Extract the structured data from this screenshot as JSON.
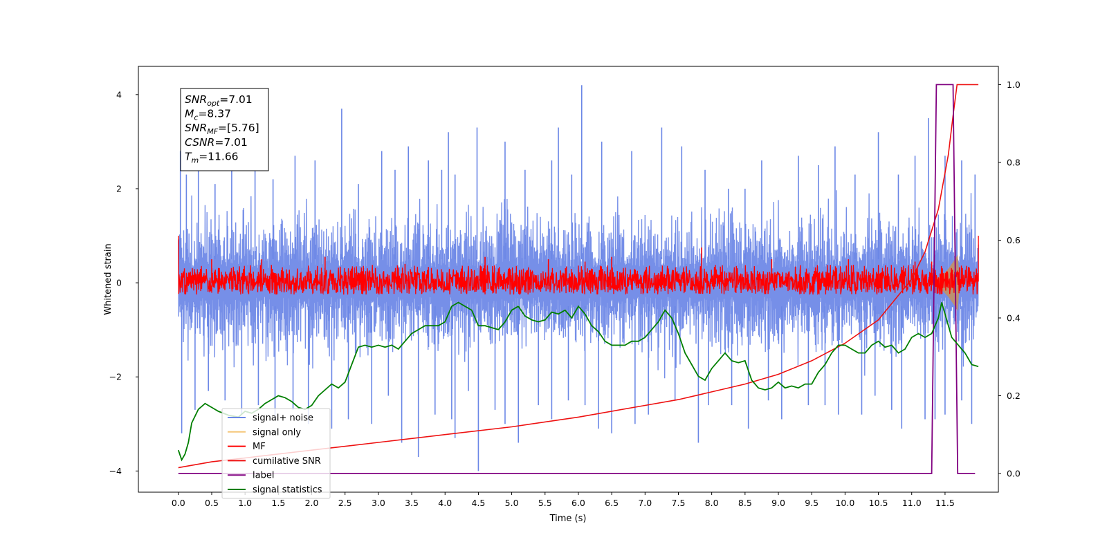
{
  "chart_data": {
    "type": "line",
    "xlabel": "Time (s)",
    "ylabel_left": "Whitened strain",
    "ylabel_right": "",
    "xlim": [
      -0.6,
      12.3
    ],
    "ylim_left": [
      -4.45,
      4.6
    ],
    "ylim_right": [
      -0.048,
      1.047
    ],
    "x_ticks": [
      "0.0",
      "0.5",
      "1.0",
      "1.5",
      "2.0",
      "2.5",
      "3.0",
      "3.5",
      "4.0",
      "4.5",
      "5.0",
      "5.5",
      "6.0",
      "6.5",
      "7.0",
      "7.5",
      "8.0",
      "8.5",
      "9.0",
      "9.5",
      "10.0",
      "10.5",
      "11.0",
      "11.5"
    ],
    "y_ticks_left": [
      "−4",
      "−2",
      "0",
      "2",
      "4"
    ],
    "y_ticks_right": [
      "0.0",
      "0.2",
      "0.4",
      "0.6",
      "0.8",
      "1.0"
    ],
    "grid": false,
    "legend_position": "lower-left",
    "colors": {
      "signal_noise": "#6a86e6",
      "signal_only": "#f5c77a",
      "mf": "#ff0000",
      "cumulative_snr": "#ee1111",
      "label": "#800080",
      "signal_statistics": "#007f00",
      "chirp_envelope": "#c9915a"
    },
    "series": [
      {
        "name": "signal+ noise",
        "axis": "left",
        "duration_s": 12.0,
        "band": [
          -1.5,
          1.5
        ],
        "extreme_peaks": [
          [
            0.03,
            2.8
          ],
          [
            0.12,
            2.3
          ],
          [
            0.3,
            2.5
          ],
          [
            0.55,
            2.1
          ],
          [
            0.8,
            2.4
          ],
          [
            1.15,
            2.6
          ],
          [
            1.42,
            2.2
          ],
          [
            1.75,
            2.7
          ],
          [
            2.05,
            2.6
          ],
          [
            2.45,
            3.7
          ],
          [
            2.7,
            2.1
          ],
          [
            3.05,
            2.8
          ],
          [
            3.25,
            2.4
          ],
          [
            3.45,
            2.9
          ],
          [
            3.75,
            2.6
          ],
          [
            3.95,
            2.4
          ],
          [
            4.05,
            3.2
          ],
          [
            4.15,
            2.3
          ],
          [
            4.48,
            3.3
          ],
          [
            4.9,
            3.0
          ],
          [
            5.2,
            2.4
          ],
          [
            5.6,
            2.6
          ],
          [
            5.7,
            3.3
          ],
          [
            5.9,
            2.3
          ],
          [
            6.05,
            4.2
          ],
          [
            6.35,
            3.0
          ],
          [
            6.8,
            2.8
          ],
          [
            7.25,
            3.3
          ],
          [
            7.55,
            2.9
          ],
          [
            7.9,
            2.4
          ],
          [
            8.25,
            2.0
          ],
          [
            8.5,
            2.0
          ],
          [
            8.75,
            2.6
          ],
          [
            9.3,
            2.7
          ],
          [
            9.6,
            2.5
          ],
          [
            9.85,
            2.9
          ],
          [
            10.15,
            2.3
          ],
          [
            10.5,
            3.2
          ],
          [
            10.8,
            2.3
          ],
          [
            11.05,
            2.7
          ],
          [
            11.25,
            3.5
          ],
          [
            11.5,
            2.7
          ],
          [
            11.75,
            2.6
          ],
          [
            11.95,
            2.3
          ]
        ],
        "extreme_troughs": [
          [
            0.05,
            -3.2
          ],
          [
            0.25,
            -2.7
          ],
          [
            0.45,
            -2.3
          ],
          [
            0.7,
            -2.5
          ],
          [
            0.95,
            -2.8
          ],
          [
            1.2,
            -2.6
          ],
          [
            1.45,
            -2.9
          ],
          [
            1.72,
            -2.7
          ],
          [
            1.95,
            -3.0
          ],
          [
            2.3,
            -3.1
          ],
          [
            2.55,
            -2.9
          ],
          [
            2.9,
            -3.0
          ],
          [
            3.15,
            -2.4
          ],
          [
            3.35,
            -3.4
          ],
          [
            3.6,
            -3.7
          ],
          [
            3.85,
            -2.8
          ],
          [
            4.1,
            -2.9
          ],
          [
            4.15,
            -3.3
          ],
          [
            4.35,
            -2.3
          ],
          [
            4.5,
            -4.0
          ],
          [
            4.75,
            -2.7
          ],
          [
            4.9,
            -3.0
          ],
          [
            5.1,
            -3.4
          ],
          [
            5.4,
            -2.6
          ],
          [
            5.6,
            -2.9
          ],
          [
            5.85,
            -2.5
          ],
          [
            6.1,
            -2.6
          ],
          [
            6.3,
            -3.1
          ],
          [
            6.5,
            -3.2
          ],
          [
            6.85,
            -3.0
          ],
          [
            7.05,
            -2.8
          ],
          [
            7.45,
            -2.5
          ],
          [
            7.8,
            -3.4
          ],
          [
            7.95,
            -2.6
          ],
          [
            8.3,
            -2.6
          ],
          [
            8.55,
            -3.1
          ],
          [
            8.85,
            -2.5
          ],
          [
            9.05,
            -2.9
          ],
          [
            9.45,
            -2.6
          ],
          [
            9.7,
            -2.6
          ],
          [
            9.9,
            -2.8
          ],
          [
            10.25,
            -2.8
          ],
          [
            10.45,
            -2.4
          ],
          [
            10.7,
            -2.7
          ],
          [
            10.85,
            -3.1
          ],
          [
            11.2,
            -2.9
          ],
          [
            11.35,
            -2.9
          ],
          [
            11.5,
            -2.8
          ],
          [
            11.75,
            -2.5
          ],
          [
            11.9,
            -3.0
          ]
        ]
      },
      {
        "name": "signal only",
        "axis": "left",
        "note_visible": "orange chirp waveform growing near 11.4-11.7 s",
        "envelope": [
          [
            11.3,
            0.05
          ],
          [
            11.45,
            0.15
          ],
          [
            11.55,
            0.3
          ],
          [
            11.65,
            0.5
          ],
          [
            11.69,
            0.6
          ],
          [
            11.72,
            0.02
          ]
        ]
      },
      {
        "name": "MF",
        "axis": "left",
        "band": [
          -0.25,
          0.25
        ],
        "start_value": 1.0,
        "end_value": 1.0,
        "peaks": [
          [
            0.5,
            0.5
          ],
          [
            1.25,
            0.5
          ],
          [
            2.2,
            0.55
          ],
          [
            3.4,
            0.4
          ],
          [
            4.6,
            0.55
          ],
          [
            5.55,
            0.5
          ],
          [
            6.1,
            0.45
          ],
          [
            6.5,
            0.55
          ],
          [
            7.85,
            0.75
          ],
          [
            8.9,
            0.5
          ],
          [
            10.05,
            0.5
          ],
          [
            11.05,
            0.45
          ],
          [
            11.3,
            0.45
          ]
        ]
      },
      {
        "name": "cumilative SNR",
        "axis": "right",
        "x": [
          0.0,
          0.5,
          1.0,
          2.0,
          3.0,
          4.0,
          5.0,
          6.0,
          7.0,
          7.5,
          8.0,
          8.5,
          9.0,
          9.5,
          10.0,
          10.5,
          11.0,
          11.2,
          11.4,
          11.55,
          11.62,
          11.68,
          11.75,
          12.0
        ],
        "y": [
          0.015,
          0.03,
          0.04,
          0.06,
          0.08,
          0.1,
          0.12,
          0.145,
          0.175,
          0.19,
          0.21,
          0.23,
          0.255,
          0.29,
          0.335,
          0.395,
          0.5,
          0.57,
          0.68,
          0.82,
          0.92,
          1.0,
          1.0,
          1.0
        ]
      },
      {
        "name": "label",
        "axis": "right",
        "x": [
          0.0,
          11.3,
          11.37,
          11.62,
          11.69,
          11.95
        ],
        "y": [
          0.0,
          0.0,
          1.0,
          1.0,
          0.0,
          0.0
        ]
      },
      {
        "name": "signal statistics",
        "axis": "right",
        "x": [
          0.0,
          0.05,
          0.1,
          0.15,
          0.2,
          0.3,
          0.4,
          0.5,
          0.6,
          0.75,
          0.9,
          1.0,
          1.1,
          1.2,
          1.3,
          1.4,
          1.5,
          1.6,
          1.7,
          1.8,
          1.9,
          2.0,
          2.1,
          2.2,
          2.3,
          2.4,
          2.5,
          2.6,
          2.7,
          2.8,
          2.9,
          3.0,
          3.1,
          3.2,
          3.3,
          3.4,
          3.5,
          3.6,
          3.7,
          3.8,
          3.9,
          4.0,
          4.1,
          4.2,
          4.3,
          4.4,
          4.5,
          4.6,
          4.7,
          4.8,
          4.9,
          5.0,
          5.1,
          5.2,
          5.3,
          5.4,
          5.5,
          5.6,
          5.7,
          5.8,
          5.9,
          6.0,
          6.1,
          6.2,
          6.3,
          6.4,
          6.5,
          6.6,
          6.7,
          6.8,
          6.9,
          7.0,
          7.1,
          7.2,
          7.3,
          7.4,
          7.5,
          7.6,
          7.7,
          7.8,
          7.9,
          8.0,
          8.1,
          8.2,
          8.3,
          8.4,
          8.5,
          8.6,
          8.7,
          8.8,
          8.9,
          9.0,
          9.1,
          9.2,
          9.3,
          9.4,
          9.5,
          9.6,
          9.7,
          9.8,
          9.9,
          10.0,
          10.1,
          10.2,
          10.3,
          10.4,
          10.5,
          10.6,
          10.7,
          10.8,
          10.9,
          11.0,
          11.1,
          11.2,
          11.3,
          11.4,
          11.45,
          11.5,
          11.6,
          11.7,
          11.8,
          11.9,
          12.0
        ],
        "y": [
          0.06,
          0.035,
          0.05,
          0.08,
          0.13,
          0.165,
          0.18,
          0.17,
          0.16,
          0.15,
          0.145,
          0.16,
          0.155,
          0.165,
          0.18,
          0.19,
          0.2,
          0.195,
          0.185,
          0.17,
          0.165,
          0.175,
          0.2,
          0.215,
          0.23,
          0.22,
          0.235,
          0.28,
          0.325,
          0.33,
          0.325,
          0.33,
          0.325,
          0.33,
          0.32,
          0.34,
          0.36,
          0.37,
          0.38,
          0.38,
          0.38,
          0.39,
          0.43,
          0.44,
          0.43,
          0.42,
          0.38,
          0.38,
          0.375,
          0.37,
          0.39,
          0.42,
          0.43,
          0.405,
          0.395,
          0.39,
          0.395,
          0.415,
          0.41,
          0.42,
          0.4,
          0.43,
          0.41,
          0.38,
          0.365,
          0.34,
          0.33,
          0.33,
          0.33,
          0.34,
          0.34,
          0.35,
          0.37,
          0.39,
          0.42,
          0.4,
          0.36,
          0.31,
          0.28,
          0.25,
          0.24,
          0.27,
          0.29,
          0.31,
          0.29,
          0.285,
          0.29,
          0.24,
          0.22,
          0.215,
          0.22,
          0.235,
          0.22,
          0.225,
          0.22,
          0.23,
          0.23,
          0.26,
          0.28,
          0.31,
          0.33,
          0.33,
          0.32,
          0.31,
          0.31,
          0.33,
          0.34,
          0.325,
          0.33,
          0.31,
          0.32,
          0.35,
          0.36,
          0.35,
          0.36,
          0.4,
          0.44,
          0.41,
          0.35,
          0.33,
          0.31,
          0.28,
          0.275
        ]
      }
    ],
    "info_box": [
      {
        "sym": "SNR",
        "sub": "opt",
        "value": "=7.01"
      },
      {
        "sym": "M",
        "sub": "c",
        "value": "=8.37"
      },
      {
        "sym": "SNR",
        "sub": "MF",
        "value": "=[5.76]"
      },
      {
        "sym": "CSNR",
        "sub": "",
        "value": "=7.01"
      },
      {
        "sym": "T",
        "sub": "m",
        "value": "=11.66"
      }
    ],
    "legend": [
      {
        "label": "signal+ noise",
        "color_key": "signal_noise"
      },
      {
        "label": "signal only",
        "color_key": "signal_only"
      },
      {
        "label": "MF",
        "color_key": "mf"
      },
      {
        "label": "cumilative SNR",
        "color_key": "cumulative_snr"
      },
      {
        "label": "label",
        "color_key": "label"
      },
      {
        "label": "signal statistics",
        "color_key": "signal_statistics"
      }
    ]
  }
}
